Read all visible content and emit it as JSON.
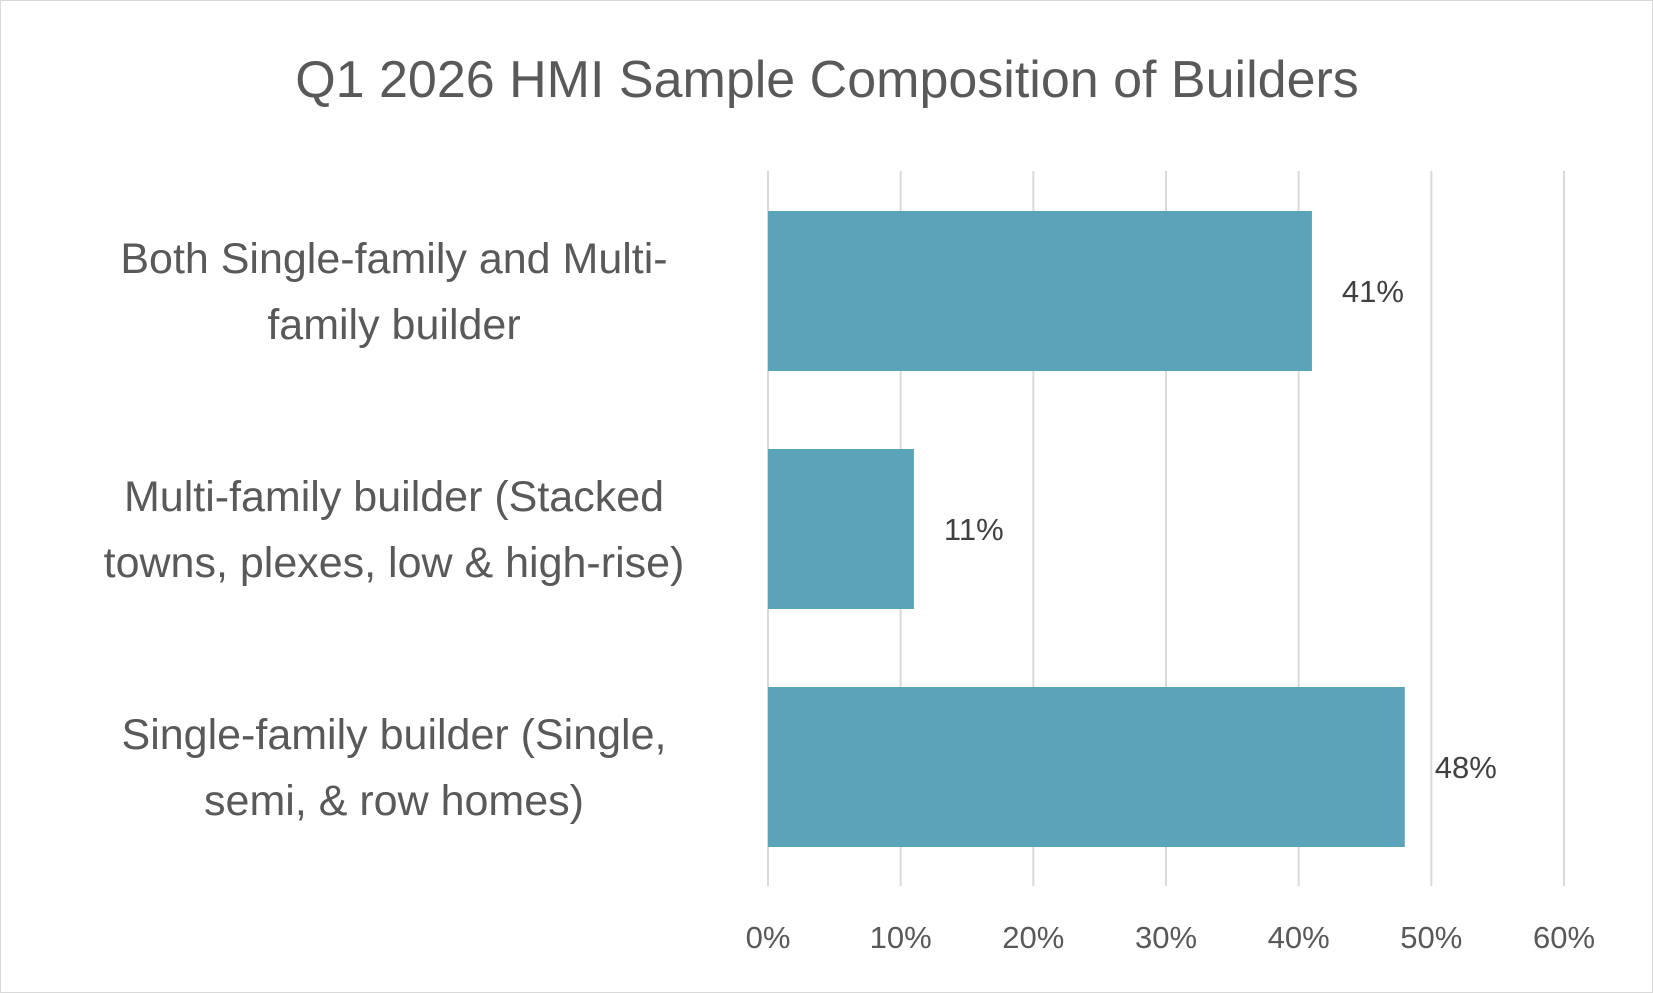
{
  "chart_data": {
    "type": "bar",
    "orientation": "horizontal",
    "title": "Q1 2026 HMI Sample Composition of Builders",
    "xlabel": "",
    "ylabel": "",
    "categories": [
      [
        "Both Single-family and Multi-",
        "family builder"
      ],
      [
        "Multi-family builder (Stacked",
        "towns, plexes, low & high-rise)"
      ],
      [
        "Single-family builder (Single,",
        "semi, & row homes)"
      ]
    ],
    "values": [
      41,
      11,
      48
    ],
    "data_labels": [
      "41%",
      "11%",
      "48%"
    ],
    "xlim": [
      0,
      60
    ],
    "x_ticks": [
      0,
      10,
      20,
      30,
      40,
      50,
      60
    ],
    "x_tick_labels": [
      "0%",
      "10%",
      "20%",
      "30%",
      "40%",
      "50%",
      "60%"
    ],
    "grid": "vertical",
    "legend": "none",
    "bar_color": "#5ba3b9"
  }
}
